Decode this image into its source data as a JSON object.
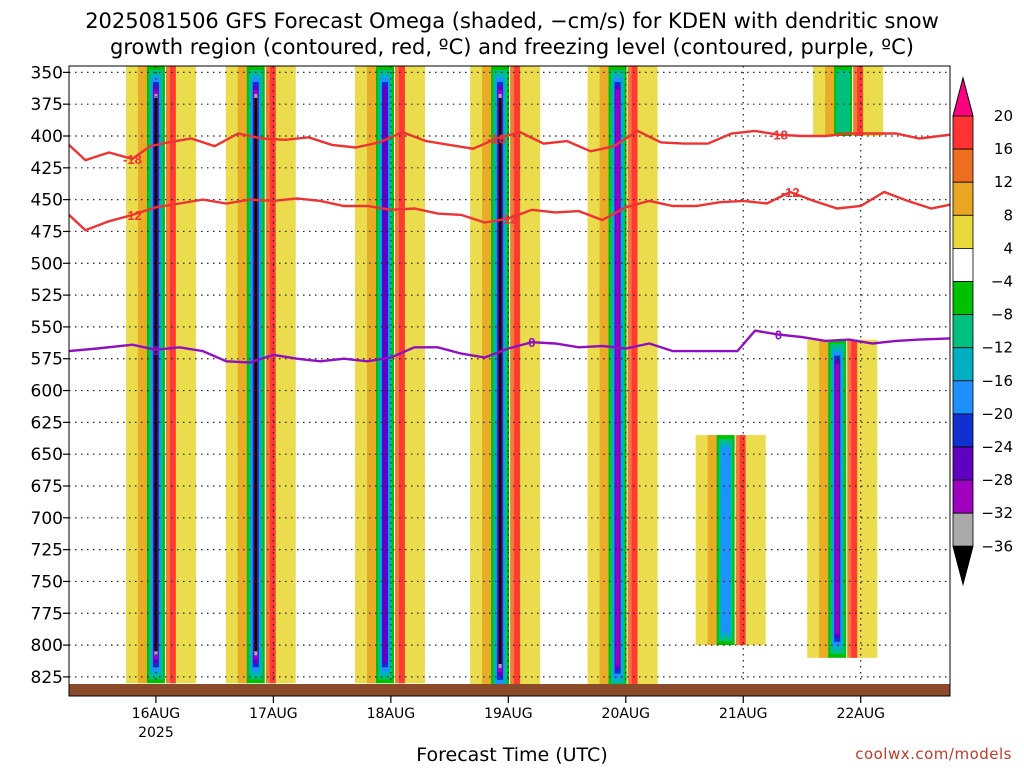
{
  "title_line1": "2025081506 GFS Forecast Omega (shaded, −cm/s) for KDEN with dendritic snow",
  "title_line2": "growth region (contoured, red, ºC) and freezing level (contoured, purple, ºC)",
  "x_axis_label": "Forecast Time (UTC)",
  "credit": "coolwx.com/models",
  "chart_data": {
    "type": "heatmap",
    "title": "2025081506 GFS Forecast Omega (shaded, −cm/s) for KDEN with dendritic snow growth region (contoured, red, ºC) and freezing level (contoured, purple, ºC)",
    "xlabel": "Forecast Time (UTC)",
    "ylabel": "",
    "x_ticks": [
      "16AUG",
      "17AUG",
      "18AUG",
      "19AUG",
      "20AUG",
      "21AUG",
      "22AUG"
    ],
    "x_year_label": "2025",
    "x_range_days": [
      15.26,
      22.76
    ],
    "y_ticks": [
      350,
      375,
      400,
      425,
      450,
      475,
      500,
      525,
      550,
      575,
      600,
      625,
      650,
      675,
      700,
      725,
      750,
      775,
      800,
      825
    ],
    "y_range": [
      345,
      840
    ],
    "y_inverted": true,
    "grid": true,
    "colorbar": {
      "labels": [
        "20",
        "16",
        "12",
        "8",
        "4",
        "−4",
        "−8",
        "−12",
        "−16",
        "−20",
        "−24",
        "−28",
        "−32",
        "−36"
      ],
      "colors": [
        "#ff0080",
        "#ff3333",
        "#ee6e20",
        "#e8a623",
        "#e8d83a",
        "#ffffff",
        "#00c000",
        "#00c080",
        "#00b0c0",
        "#1e90ff",
        "#1030d0",
        "#6000c0",
        "#a000c0",
        "#aaaaaa",
        "#000000"
      ]
    },
    "contours": [
      {
        "label": "-18",
        "color": "#ee3333",
        "x": [
          15.26,
          15.4,
          15.6,
          15.8,
          15.95,
          16.1,
          16.3,
          16.5,
          16.7,
          16.9,
          17.1,
          17.3,
          17.5,
          17.7,
          17.9,
          18.1,
          18.3,
          18.5,
          18.7,
          18.9,
          19.1,
          19.3,
          19.5,
          19.7,
          19.9,
          20.1,
          20.3,
          20.5,
          20.7,
          20.9,
          21.1,
          21.3,
          21.5,
          21.7,
          21.9,
          22.1,
          22.3,
          22.5,
          22.76
        ],
        "y": [
          407,
          419,
          413,
          418,
          408,
          405,
          402,
          408,
          398,
          402,
          403,
          401,
          407,
          409,
          405,
          397,
          404,
          407,
          410,
          402,
          397,
          406,
          404,
          412,
          408,
          396,
          405,
          406,
          406,
          398,
          396,
          399,
          400,
          400,
          398,
          398,
          398,
          402,
          399
        ]
      },
      {
        "label": "-12",
        "color": "#ee3333",
        "x": [
          15.26,
          15.4,
          15.6,
          15.8,
          16.0,
          16.2,
          16.4,
          16.6,
          16.8,
          17.0,
          17.2,
          17.4,
          17.6,
          17.8,
          18.0,
          18.2,
          18.4,
          18.6,
          18.8,
          19.0,
          19.2,
          19.4,
          19.6,
          19.8,
          20.0,
          20.2,
          20.4,
          20.6,
          20.8,
          21.0,
          21.2,
          21.4,
          21.6,
          21.8,
          22.0,
          22.2,
          22.4,
          22.6,
          22.76
        ],
        "y": [
          462,
          474,
          467,
          462,
          456,
          453,
          450,
          453,
          450,
          451,
          449,
          451,
          455,
          455,
          458,
          457,
          461,
          462,
          468,
          465,
          458,
          460,
          459,
          466,
          456,
          451,
          455,
          455,
          452,
          451,
          453,
          444,
          451,
          457,
          455,
          444,
          451,
          457,
          454
        ]
      },
      {
        "label": "0",
        "color": "#9010c0",
        "x": [
          15.26,
          15.5,
          15.8,
          16.0,
          16.2,
          16.4,
          16.6,
          16.8,
          17.0,
          17.2,
          17.4,
          17.6,
          17.8,
          18.0,
          18.2,
          18.4,
          18.6,
          18.8,
          19.0,
          19.2,
          19.4,
          19.6,
          19.8,
          20.0,
          20.2,
          20.4,
          20.6,
          20.8,
          20.95,
          21.1,
          21.3,
          21.5,
          21.7,
          21.9,
          22.1,
          22.3,
          22.5,
          22.76
        ],
        "y": [
          569,
          567,
          564,
          568,
          566,
          569,
          577,
          578,
          572,
          575,
          577,
          575,
          577,
          574,
          566,
          566,
          571,
          574,
          567,
          562,
          563,
          566,
          565,
          567,
          563,
          569,
          569,
          569,
          569,
          553,
          556,
          558,
          561,
          560,
          563,
          561,
          560,
          559
        ]
      }
    ],
    "shaded_bands": [
      {
        "x_day": 16.0,
        "p_top": 345,
        "p_bottom": 830,
        "peak": -36
      },
      {
        "x_day": 16.85,
        "p_top": 345,
        "p_bottom": 830,
        "peak": -36
      },
      {
        "x_day": 17.95,
        "p_top": 345,
        "p_bottom": 830,
        "peak": -24
      },
      {
        "x_day": 18.93,
        "p_top": 345,
        "p_bottom": 840,
        "peak": -36
      },
      {
        "x_day": 19.93,
        "p_top": 345,
        "p_bottom": 835,
        "peak": -28
      },
      {
        "x_day": 20.85,
        "p_top": 635,
        "p_bottom": 800,
        "peak": -16
      },
      {
        "x_day": 21.8,
        "p_top": 560,
        "p_bottom": 810,
        "peak": -28
      },
      {
        "x_day": 21.85,
        "p_top": 345,
        "p_bottom": 400,
        "peak": -8
      }
    ]
  }
}
